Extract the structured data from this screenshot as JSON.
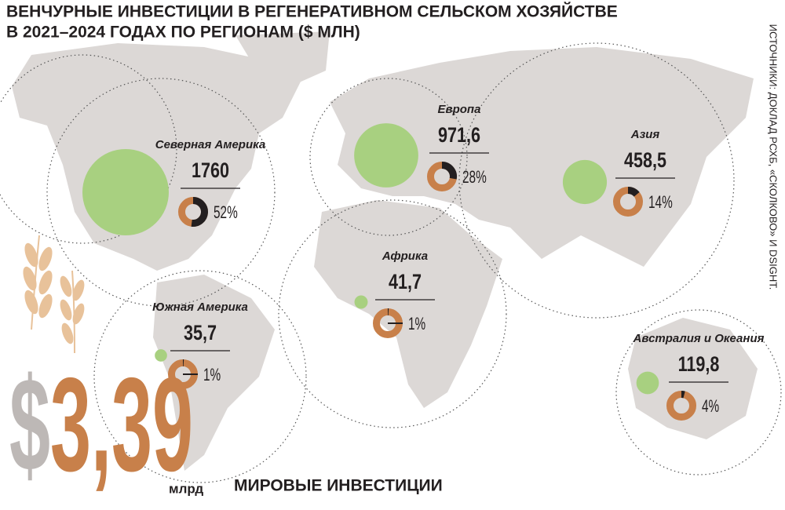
{
  "chart_data": {
    "type": "bubble-map",
    "title_lines": [
      "ВЕНЧУРНЫЕ ИНВЕСТИЦИИ В РЕГЕНЕРАТИВНОМ СЕЛЬСКОМ ХОЗЯЙСТВЕ",
      "В 2021–2024 ГОДАХ ПО РЕГИОНАМ ($ МЛН)"
    ],
    "source": "ИСТОЧНИКИ: ДОКЛАД РСХБ, «СКОЛКОВО» И DSIGHT.",
    "categories": [
      "Северная Америка",
      "Европа",
      "Азия",
      "Африка",
      "Южная Америка",
      "Австралия и Океания"
    ],
    "values": [
      1760,
      971.6,
      458.5,
      41.7,
      35.7,
      119.8
    ],
    "value_labels": [
      "1760",
      "971,6",
      "458,5",
      "41,7",
      "35,7",
      "119,8"
    ],
    "shares": [
      52,
      28,
      14,
      1,
      1,
      4
    ],
    "share_labels": [
      "52%",
      "28%",
      "14%",
      "1%",
      "1%",
      "4%"
    ],
    "total": 3.39,
    "total_currency": "$",
    "total_label": "3,39",
    "total_unit": "млрд",
    "total_caption": "МИРОВЫЕ ИНВЕСТИЦИИ",
    "bubble_color": "#a8d080",
    "ring_color": "#c8804a",
    "share_color": "#231f20"
  }
}
